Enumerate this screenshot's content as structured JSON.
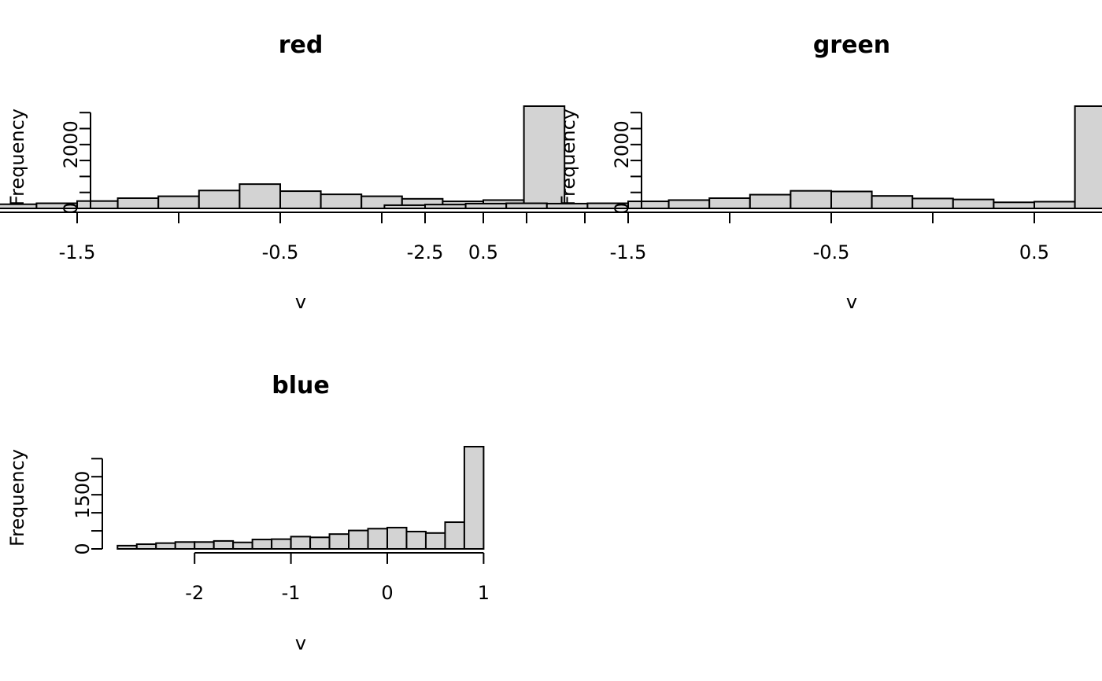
{
  "chart_data": [
    {
      "type": "bar",
      "title": "red",
      "xlabel": "v",
      "ylabel": "Frequency",
      "bin_width": 0.2,
      "bin_start": -2.7,
      "values": [
        80,
        120,
        150,
        190,
        130,
        160,
        230,
        320,
        380,
        560,
        760,
        540,
        440,
        380,
        300,
        220,
        260,
        6300
      ],
      "x_ticks": [
        -2.5,
        -2,
        -1.5,
        -1,
        -0.5,
        0,
        0.5,
        1
      ],
      "x_tick_labels": [
        "-2.5",
        "",
        "-1.5",
        "",
        "-0.5",
        "",
        "0.5",
        ""
      ],
      "y_ticks": [
        0,
        500,
        1000,
        1500,
        2000,
        2500,
        3000
      ],
      "y_tick_labels": [
        "0",
        "",
        "",
        "",
        "2000",
        "",
        ""
      ],
      "xlim": [
        -2.6,
        1.0
      ],
      "ylim": [
        0,
        3000
      ]
    },
    {
      "type": "bar",
      "title": "green",
      "xlabel": "v",
      "ylabel": "Frequency",
      "bin_width": 0.2,
      "bin_start": -2.7,
      "values": [
        100,
        120,
        150,
        160,
        150,
        160,
        220,
        260,
        320,
        430,
        550,
        530,
        390,
        310,
        280,
        190,
        210,
        6300
      ],
      "x_ticks": [
        -2.5,
        -2,
        -1.5,
        -1,
        -0.5,
        0,
        0.5,
        1
      ],
      "x_tick_labels": [
        "-2.5",
        "",
        "-1.5",
        "",
        "-0.5",
        "",
        "0.5",
        ""
      ],
      "y_ticks": [
        0,
        500,
        1000,
        1500,
        2000,
        2500,
        3000
      ],
      "y_tick_labels": [
        "0",
        "",
        "",
        "",
        "2000",
        "",
        ""
      ],
      "xlim": [
        -2.6,
        1.0
      ],
      "ylim": [
        0,
        3000
      ]
    },
    {
      "type": "bar",
      "title": "blue",
      "xlabel": "v",
      "ylabel": "Frequency",
      "bin_width": 0.2,
      "bin_start": -2.8,
      "values": [
        90,
        130,
        160,
        190,
        190,
        220,
        180,
        260,
        270,
        340,
        320,
        410,
        510,
        560,
        590,
        480,
        440,
        740,
        5300
      ],
      "x_ticks": [
        -2,
        -1,
        0,
        1
      ],
      "x_tick_labels": [
        "-2",
        "-1",
        "0",
        "1"
      ],
      "y_ticks": [
        0,
        500,
        1000,
        1500,
        2000,
        2500
      ],
      "y_tick_labels": [
        "0",
        "",
        "",
        "1500",
        "",
        ""
      ],
      "xlim": [
        -2.0,
        1.0
      ],
      "ylim": [
        0,
        2500
      ]
    }
  ]
}
